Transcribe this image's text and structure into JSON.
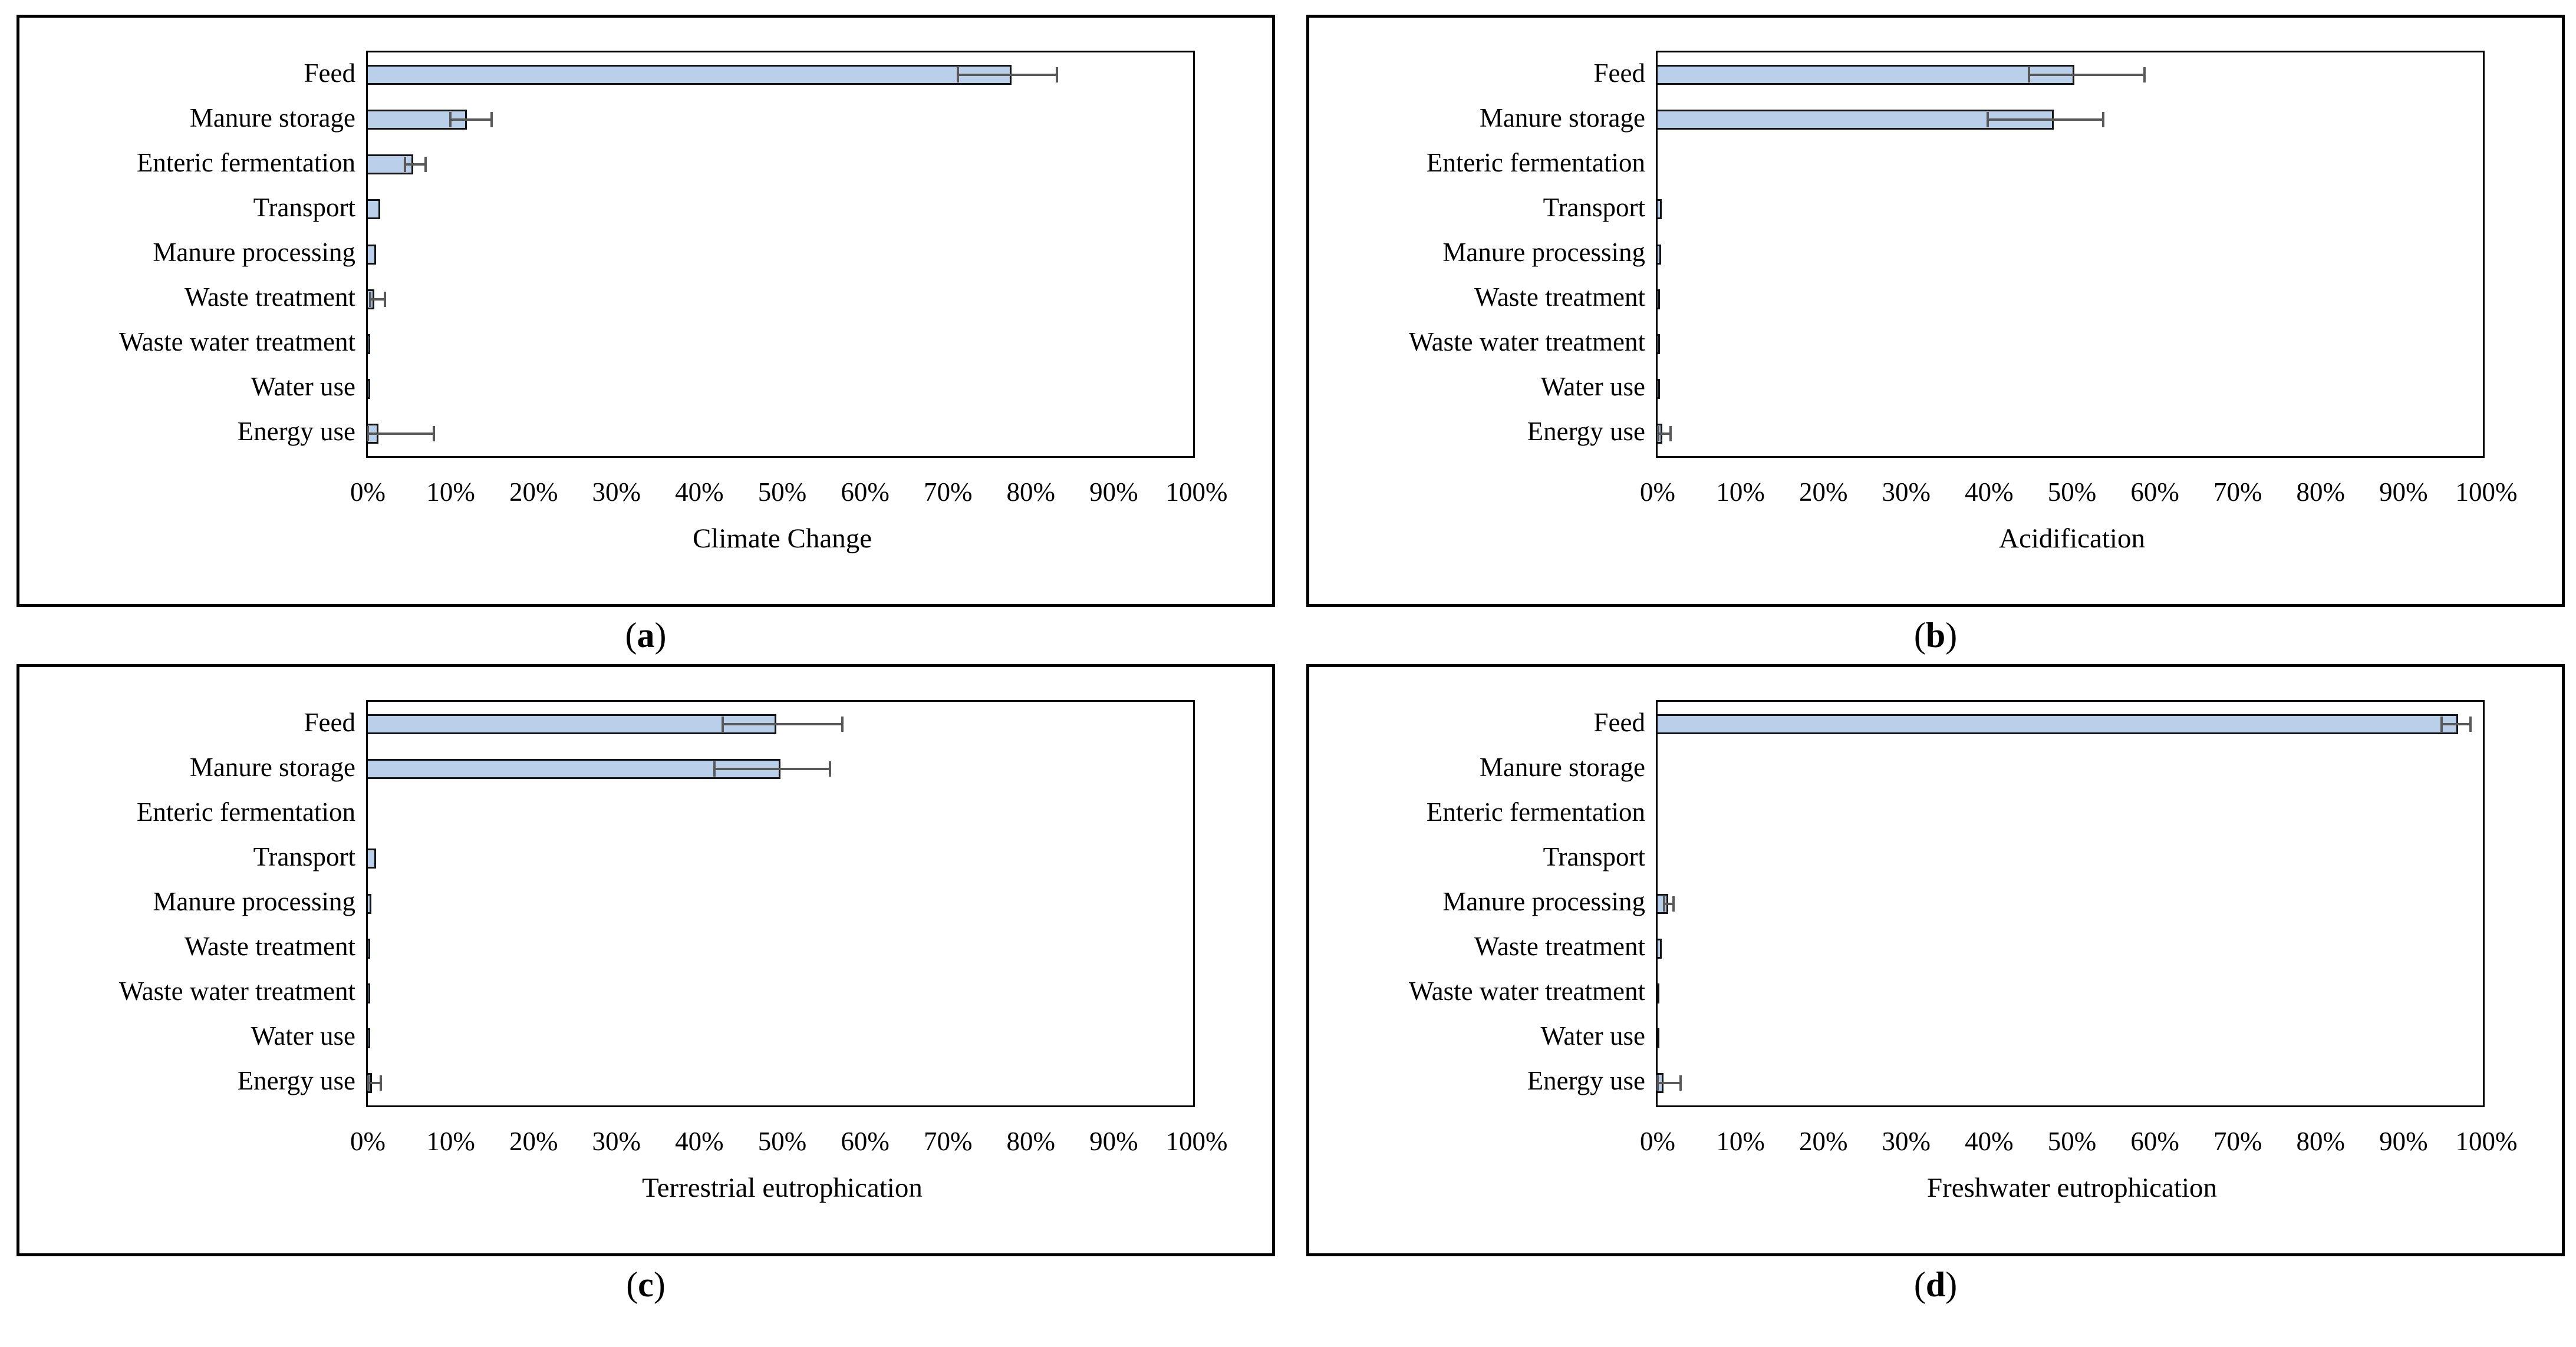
{
  "figure": {
    "paren_open": "(",
    "paren_close": ")",
    "colors": {
      "bar_fill": "#B9CFEA",
      "bar_border": "#141414",
      "error_bar": "#595959",
      "panel_border": "#000000",
      "plot_border": "#000000",
      "text": "#000000",
      "background": "#FFFFFF"
    }
  },
  "chart_data": [
    {
      "type": "bar",
      "orientation": "horizontal",
      "panel_letter": "a",
      "xlabel": "Climate Change",
      "categories": [
        "Feed",
        "Manure storage",
        "Enteric fermentation",
        "Transport",
        "Manure processing",
        "Waste treatment",
        "Waste water treatment",
        "Water use",
        "Energy use"
      ],
      "values": [
        78,
        12,
        5.5,
        1.5,
        1.0,
        0.8,
        0.3,
        0.3,
        1.3
      ],
      "error_low": [
        71.5,
        10,
        4.5,
        null,
        null,
        0.3,
        null,
        null,
        0
      ],
      "error_high": [
        83.5,
        15,
        7,
        null,
        null,
        2.1,
        null,
        null,
        8
      ],
      "xlim": [
        0,
        100
      ],
      "xtick_labels": [
        "0%",
        "10%",
        "20%",
        "30%",
        "40%",
        "50%",
        "60%",
        "70%",
        "80%",
        "90%",
        "100%"
      ],
      "grid": false,
      "legend": null
    },
    {
      "type": "bar",
      "orientation": "horizontal",
      "panel_letter": "b",
      "xlabel": "Acidification",
      "categories": [
        "Feed",
        "Manure storage",
        "Enteric fermentation",
        "Transport",
        "Manure processing",
        "Waste treatment",
        "Waste water treatment",
        "Water use",
        "Energy use"
      ],
      "values": [
        50.5,
        48,
        0,
        0.5,
        0.4,
        0.3,
        0.3,
        0.3,
        0.6
      ],
      "error_low": [
        45,
        40,
        null,
        null,
        null,
        null,
        null,
        null,
        0.1
      ],
      "error_high": [
        59,
        54,
        null,
        null,
        null,
        null,
        null,
        null,
        1.6
      ],
      "xlim": [
        0,
        100
      ],
      "xtick_labels": [
        "0%",
        "10%",
        "20%",
        "30%",
        "40%",
        "50%",
        "60%",
        "70%",
        "80%",
        "90%",
        "100%"
      ],
      "grid": false,
      "legend": null
    },
    {
      "type": "bar",
      "orientation": "horizontal",
      "panel_letter": "c",
      "xlabel": "Terrestrial eutrophication",
      "categories": [
        "Feed",
        "Manure storage",
        "Enteric fermentation",
        "Transport",
        "Manure processing",
        "Waste treatment",
        "Waste water treatment",
        "Water use",
        "Energy use"
      ],
      "values": [
        49.5,
        50,
        0,
        1.0,
        0.4,
        0.3,
        0.3,
        0.3,
        0.5
      ],
      "error_low": [
        43,
        42,
        null,
        null,
        null,
        null,
        null,
        null,
        0.1
      ],
      "error_high": [
        57.5,
        56,
        null,
        null,
        null,
        null,
        null,
        null,
        1.6
      ],
      "xlim": [
        0,
        100
      ],
      "xtick_labels": [
        "0%",
        "10%",
        "20%",
        "30%",
        "40%",
        "50%",
        "60%",
        "70%",
        "80%",
        "90%",
        "100%"
      ],
      "grid": false,
      "legend": null
    },
    {
      "type": "bar",
      "orientation": "horizontal",
      "panel_letter": "d",
      "xlabel": "Freshwater eutrophication",
      "categories": [
        "Feed",
        "Manure storage",
        "Enteric fermentation",
        "Transport",
        "Manure processing",
        "Waste treatment",
        "Waste water treatment",
        "Water use",
        "Energy use"
      ],
      "values": [
        97,
        0,
        0,
        0,
        1.3,
        0.5,
        0.2,
        0.2,
        0.7
      ],
      "error_low": [
        95,
        null,
        null,
        null,
        0.8,
        null,
        null,
        null,
        0
      ],
      "error_high": [
        98.5,
        null,
        null,
        null,
        1.9,
        null,
        null,
        null,
        2.8
      ],
      "xlim": [
        0,
        100
      ],
      "xtick_labels": [
        "0%",
        "10%",
        "20%",
        "30%",
        "40%",
        "50%",
        "60%",
        "70%",
        "80%",
        "90%",
        "100%"
      ],
      "grid": false,
      "legend": null
    }
  ]
}
